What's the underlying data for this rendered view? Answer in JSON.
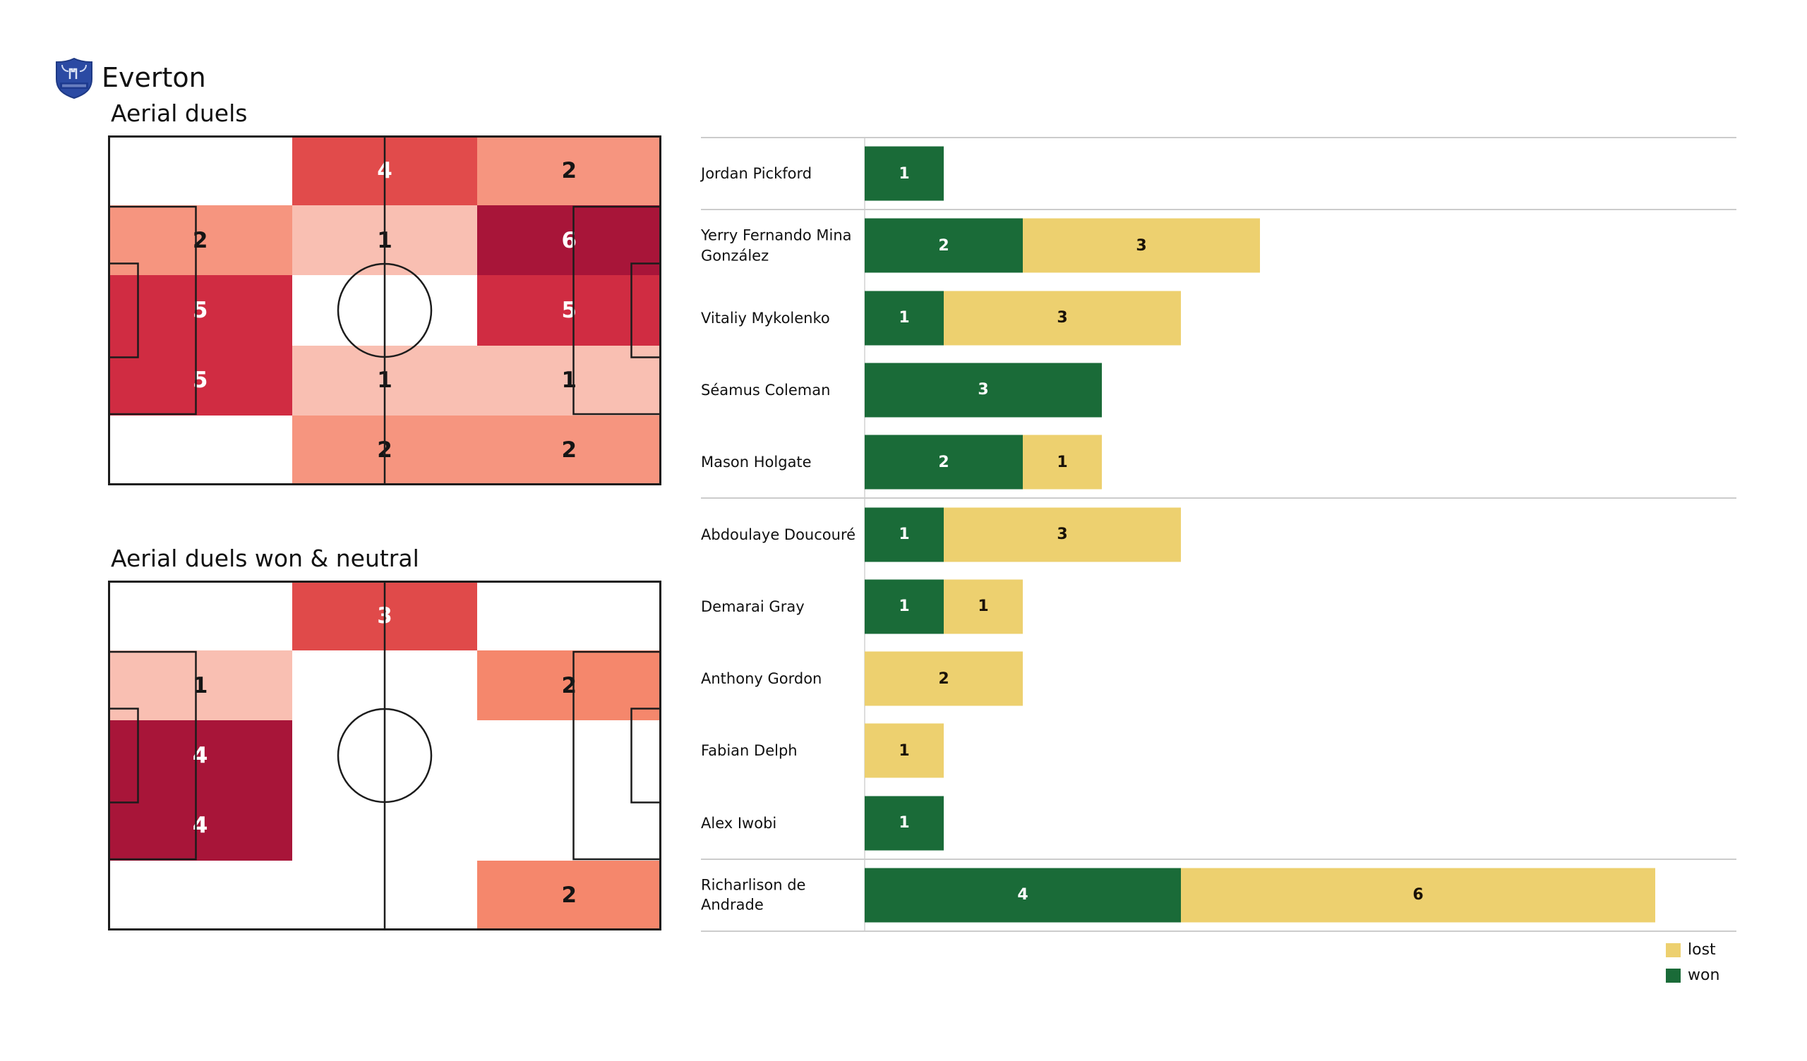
{
  "header": {
    "title": "Everton",
    "crest": "everton-crest"
  },
  "colors": {
    "background": "#ffffff",
    "text": "#111111",
    "separator": "#cccccc",
    "axis_line": "#dddddd",
    "pitch_line": "#1c1c1c",
    "won": "#1a6b38",
    "lost": "#edd06f"
  },
  "chart_data": [
    {
      "type": "heatmap",
      "title": "Aerial duels",
      "pitch": "horizontal-football-pitch",
      "rows": 5,
      "cols": 3,
      "cells": [
        {
          "row": 0,
          "col": 1,
          "value": 4,
          "color": "#e14b4b",
          "text_color": "#ffffff"
        },
        {
          "row": 0,
          "col": 2,
          "value": 2,
          "color": "#f6957f",
          "text_color": "#151515"
        },
        {
          "row": 1,
          "col": 0,
          "value": 2,
          "color": "#f6957f",
          "text_color": "#151515"
        },
        {
          "row": 1,
          "col": 1,
          "value": 1,
          "color": "#f9bfb2",
          "text_color": "#151515"
        },
        {
          "row": 1,
          "col": 2,
          "value": 6,
          "color": "#a81539",
          "text_color": "#ffffff"
        },
        {
          "row": 2,
          "col": 0,
          "value": 5,
          "color": "#d02c42",
          "text_color": "#ffffff"
        },
        {
          "row": 2,
          "col": 2,
          "value": 5,
          "color": "#d02c42",
          "text_color": "#ffffff"
        },
        {
          "row": 3,
          "col": 0,
          "value": 5,
          "color": "#d02c42",
          "text_color": "#ffffff"
        },
        {
          "row": 3,
          "col": 1,
          "value": 1,
          "color": "#f9bfb2",
          "text_color": "#151515"
        },
        {
          "row": 3,
          "col": 2,
          "value": 1,
          "color": "#f9bfb2",
          "text_color": "#151515"
        },
        {
          "row": 4,
          "col": 1,
          "value": 2,
          "color": "#f6957f",
          "text_color": "#151515"
        },
        {
          "row": 4,
          "col": 2,
          "value": 2,
          "color": "#f6957f",
          "text_color": "#151515"
        }
      ]
    },
    {
      "type": "heatmap",
      "title": "Aerial duels won & neutral",
      "pitch": "horizontal-football-pitch",
      "rows": 5,
      "cols": 3,
      "cells": [
        {
          "row": 0,
          "col": 1,
          "value": 3,
          "color": "#e04a4a",
          "text_color": "#ffffff"
        },
        {
          "row": 1,
          "col": 0,
          "value": 1,
          "color": "#f9bfb2",
          "text_color": "#151515"
        },
        {
          "row": 1,
          "col": 2,
          "value": 2,
          "color": "#f5876c",
          "text_color": "#151515"
        },
        {
          "row": 2,
          "col": 0,
          "value": 4,
          "color": "#a81539",
          "text_color": "#ffffff"
        },
        {
          "row": 3,
          "col": 0,
          "value": 4,
          "color": "#a81539",
          "text_color": "#ffffff"
        },
        {
          "row": 4,
          "col": 2,
          "value": 2,
          "color": "#f5876c",
          "text_color": "#151515"
        }
      ]
    },
    {
      "type": "bar",
      "orientation": "horizontal",
      "stacked": true,
      "categories": [
        "Jordan Pickford",
        "Yerry Fernando Mina González",
        "Vitaliy Mykolenko",
        "Séamus Coleman",
        "Mason Holgate",
        "Abdoulaye Doucouré",
        "Demarai Gray",
        "Anthony Gordon",
        "Fabian Delph",
        "Alex Iwobi",
        "Richarlison de Andrade"
      ],
      "category_label_lines": [
        [
          "Jordan Pickford"
        ],
        [
          "Yerry Fernando Mina",
          "González"
        ],
        [
          "Vitaliy Mykolenko"
        ],
        [
          "Séamus Coleman"
        ],
        [
          "Mason Holgate"
        ],
        [
          "Abdoulaye Doucouré"
        ],
        [
          "Demarai Gray"
        ],
        [
          "Anthony Gordon"
        ],
        [
          "Fabian Delph"
        ],
        [
          "Alex Iwobi"
        ],
        [
          "Richarlison de Andrade"
        ]
      ],
      "series": [
        {
          "name": "won",
          "color": "#1a6b38",
          "label_color": "#ffffff",
          "values": [
            1,
            2,
            1,
            3,
            2,
            1,
            1,
            0,
            0,
            1,
            4
          ]
        },
        {
          "name": "lost",
          "color": "#edd06f",
          "label_color": "#1a1208",
          "values": [
            0,
            3,
            3,
            0,
            1,
            3,
            1,
            2,
            1,
            0,
            6
          ]
        }
      ],
      "group_separators_after_rows": [
        0,
        4,
        9
      ],
      "xlim": [
        0,
        10
      ],
      "grid": false,
      "legend": {
        "position": "bottom-right",
        "entries": [
          {
            "label": "lost",
            "color": "#edd06f"
          },
          {
            "label": "won",
            "color": "#1a6b38"
          }
        ]
      }
    }
  ]
}
